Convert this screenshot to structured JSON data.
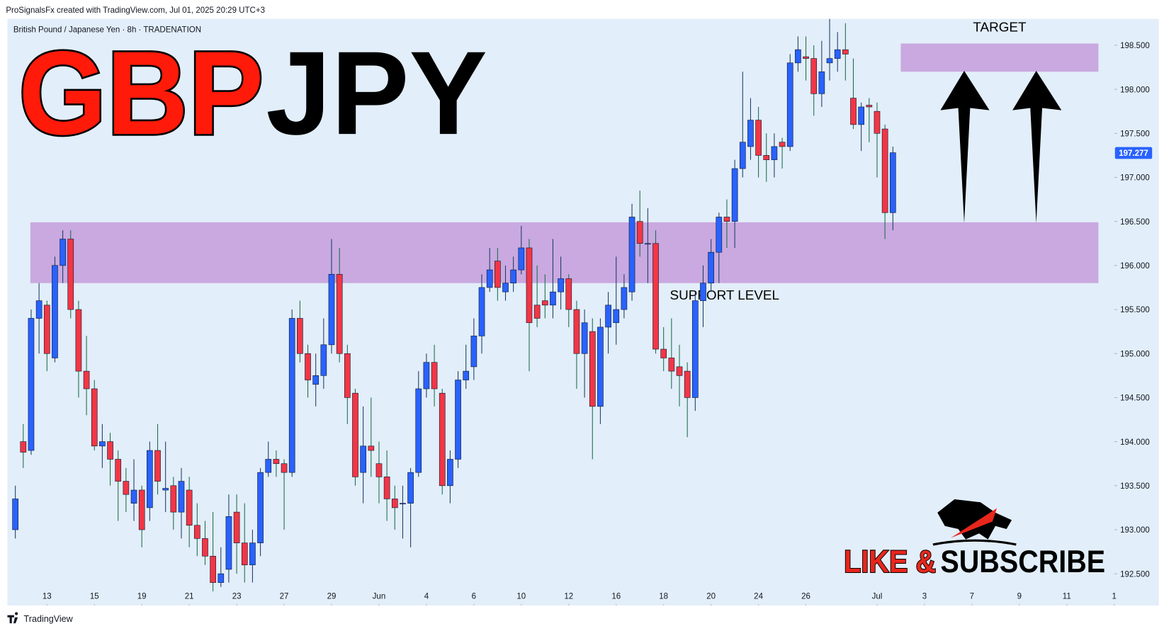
{
  "chart_data": {
    "type": "candlestick",
    "header": "ProSignalsFx created with TradingView.com, Jul 01, 2025 20:29 UTC+3",
    "subtitle": "British Pound / Japanese Yen · 8h · TRADENATION",
    "title_parts": [
      "GBP",
      "JPY"
    ],
    "cta_parts": [
      "LIKE &",
      "SUBSCRIBE"
    ],
    "footer": "TradingView",
    "up_color": "#2962ff",
    "down_color": "#f23645",
    "last_price": 197.277,
    "open": [
      193.0,
      194.0,
      193.9,
      195.4,
      195.55,
      194.95,
      196.0,
      196.3,
      195.5,
      194.8,
      194.6,
      193.95,
      194.0,
      193.8,
      193.55,
      193.3,
      193.45,
      193.25,
      193.9,
      193.45,
      193.5,
      193.2,
      193.45,
      193.05,
      192.9,
      192.7,
      192.4,
      192.55,
      193.2,
      192.85,
      192.6,
      192.85,
      193.65,
      193.8,
      193.75,
      193.65,
      195.4,
      195.0,
      194.65,
      194.75,
      195.1,
      195.9,
      195.0,
      194.55,
      193.65,
      193.95,
      193.75,
      193.6,
      193.35,
      193.3,
      193.3,
      193.65,
      194.6,
      194.9,
      194.55,
      193.5,
      193.8,
      194.7,
      194.85,
      195.2,
      195.75,
      196.05,
      195.7,
      195.8,
      195.95,
      196.2,
      195.55,
      195.6,
      195.55,
      195.7,
      195.85,
      195.5,
      195.0,
      195.25,
      194.4,
      195.3,
      195.35,
      195.5,
      195.7,
      196.5,
      196.25,
      196.25,
      195.05,
      194.95,
      194.85,
      194.8,
      194.5,
      195.6,
      195.8,
      196.15,
      196.55,
      196.5,
      197.1,
      197.35,
      197.65,
      197.25,
      197.2,
      197.4,
      197.35,
      198.3,
      198.37,
      198.35,
      197.95,
      198.3,
      198.35,
      198.45,
      197.9,
      197.6,
      197.82,
      197.75,
      197.55,
      196.6
    ],
    "high": [
      193.5,
      194.2,
      195.5,
      195.8,
      195.6,
      196.1,
      196.4,
      196.4,
      195.6,
      195.2,
      194.7,
      194.2,
      194.1,
      193.9,
      193.7,
      193.8,
      193.5,
      194.0,
      194.2,
      194.0,
      193.6,
      193.7,
      193.6,
      193.3,
      193.1,
      193.2,
      192.8,
      193.4,
      193.4,
      193.3,
      193.0,
      193.7,
      194.0,
      193.9,
      193.8,
      195.5,
      195.6,
      195.1,
      195.0,
      195.4,
      196.3,
      196.2,
      195.1,
      194.6,
      194.4,
      194.5,
      194.0,
      193.9,
      193.5,
      193.5,
      193.7,
      194.8,
      195.0,
      195.1,
      194.6,
      193.9,
      194.8,
      195.1,
      195.4,
      195.9,
      196.2,
      196.2,
      196.0,
      196.1,
      196.45,
      196.3,
      196.0,
      195.9,
      196.3,
      196.1,
      195.9,
      195.6,
      195.5,
      195.4,
      195.4,
      195.7,
      196.1,
      195.9,
      196.7,
      196.85,
      196.65,
      196.4,
      195.3,
      195.4,
      195.1,
      194.9,
      195.7,
      196.0,
      196.3,
      196.6,
      196.75,
      197.2,
      198.2,
      197.9,
      197.8,
      197.5,
      197.5,
      197.45,
      198.4,
      198.6,
      198.6,
      198.5,
      198.55,
      198.8,
      198.65,
      198.75,
      198.35,
      197.85,
      197.9,
      197.85,
      197.6,
      197.35
    ],
    "low": [
      192.9,
      193.7,
      193.85,
      195.0,
      194.8,
      194.9,
      195.8,
      195.4,
      194.5,
      194.3,
      193.9,
      193.7,
      193.5,
      193.1,
      193.2,
      193.1,
      192.8,
      193.1,
      193.4,
      193.2,
      193.0,
      192.9,
      192.8,
      192.7,
      192.6,
      192.3,
      192.35,
      192.4,
      192.5,
      192.4,
      192.4,
      192.7,
      193.6,
      193.6,
      193.0,
      193.6,
      194.9,
      194.5,
      194.4,
      194.6,
      195.0,
      194.9,
      194.2,
      193.5,
      193.3,
      193.6,
      193.3,
      193.1,
      193.0,
      192.9,
      192.8,
      193.6,
      194.5,
      194.4,
      193.4,
      193.3,
      193.7,
      194.6,
      194.7,
      195.0,
      195.7,
      195.6,
      195.6,
      195.7,
      195.9,
      194.8,
      195.3,
      195.4,
      195.4,
      195.5,
      195.3,
      194.6,
      194.5,
      193.8,
      194.2,
      195.0,
      195.1,
      195.4,
      195.6,
      196.1,
      195.8,
      195.0,
      194.8,
      194.6,
      194.4,
      194.05,
      194.35,
      195.3,
      195.7,
      195.8,
      196.2,
      196.2,
      197.0,
      197.2,
      197.0,
      196.95,
      197.0,
      197.1,
      197.3,
      198.2,
      198.1,
      197.7,
      197.8,
      198.1,
      198.2,
      198.1,
      197.55,
      197.3,
      197.4,
      197.0,
      196.3,
      196.4
    ],
    "close": [
      193.35,
      193.88,
      195.4,
      195.6,
      195.0,
      196.0,
      196.3,
      195.5,
      194.8,
      194.6,
      193.95,
      194.0,
      193.8,
      193.55,
      193.4,
      193.45,
      193.0,
      193.9,
      193.55,
      193.47,
      193.2,
      193.55,
      193.05,
      192.9,
      192.7,
      192.4,
      192.5,
      193.15,
      192.85,
      192.6,
      192.85,
      193.65,
      193.8,
      193.75,
      193.65,
      195.4,
      195.0,
      194.7,
      194.75,
      195.1,
      195.9,
      195.0,
      194.5,
      193.6,
      193.95,
      193.9,
      193.6,
      193.35,
      193.25,
      193.3,
      193.65,
      194.6,
      194.9,
      194.6,
      193.5,
      193.8,
      194.7,
      194.8,
      195.2,
      195.75,
      195.95,
      195.75,
      195.8,
      195.95,
      196.2,
      195.35,
      195.4,
      195.55,
      195.7,
      195.85,
      195.5,
      195.0,
      195.35,
      194.4,
      195.3,
      195.55,
      195.5,
      195.75,
      196.55,
      196.25,
      196.25,
      195.05,
      194.95,
      194.8,
      194.75,
      194.5,
      195.6,
      195.8,
      196.15,
      196.55,
      196.5,
      197.1,
      197.4,
      197.65,
      197.25,
      197.2,
      197.35,
      197.35,
      198.3,
      198.45,
      198.35,
      197.95,
      198.2,
      198.35,
      198.45,
      198.4,
      197.6,
      197.8,
      197.8,
      197.5,
      196.6,
      197.28
    ],
    "xlim": [
      -1,
      139
    ],
    "xticks": [
      {
        "value": 4,
        "label": "13"
      },
      {
        "value": 10,
        "label": "15"
      },
      {
        "value": 16,
        "label": "19"
      },
      {
        "value": 22,
        "label": "21"
      },
      {
        "value": 28,
        "label": "23"
      },
      {
        "value": 34,
        "label": "27"
      },
      {
        "value": 40,
        "label": "29"
      },
      {
        "value": 46,
        "label": "Jun"
      },
      {
        "value": 52,
        "label": "4"
      },
      {
        "value": 58,
        "label": "6"
      },
      {
        "value": 64,
        "label": "10"
      },
      {
        "value": 70,
        "label": "12"
      },
      {
        "value": 76,
        "label": "16"
      },
      {
        "value": 82,
        "label": "18"
      },
      {
        "value": 88,
        "label": "20"
      },
      {
        "value": 94,
        "label": "24"
      },
      {
        "value": 100,
        "label": "26"
      },
      {
        "value": 109,
        "label": "Jul"
      },
      {
        "value": 115,
        "label": "3"
      },
      {
        "value": 121,
        "label": "7"
      },
      {
        "value": 127,
        "label": "9"
      },
      {
        "value": 133,
        "label": "11"
      },
      {
        "value": 139,
        "label": "1"
      }
    ],
    "ylim": [
      192.14,
      198.8
    ],
    "yticks": [
      {
        "value": 192.5,
        "label": "192.500"
      },
      {
        "value": 193,
        "label": "193.000"
      },
      {
        "value": 193.5,
        "label": "193.500"
      },
      {
        "value": 194,
        "label": "194.000"
      },
      {
        "value": 194.5,
        "label": "194.500"
      },
      {
        "value": 195,
        "label": "195.000"
      },
      {
        "value": 195.5,
        "label": "195.500"
      },
      {
        "value": 196,
        "label": "196.000"
      },
      {
        "value": 196.5,
        "label": "196.500"
      },
      {
        "value": 197,
        "label": "197.000"
      },
      {
        "value": 197.5,
        "label": "197.500"
      },
      {
        "value": 198,
        "label": "198.000"
      },
      {
        "value": 198.5,
        "label": "198.500"
      }
    ],
    "zone_color": "#c9a9e0",
    "zones": [
      {
        "label": "TARGET",
        "range": [
          198.2,
          198.52
        ],
        "x": [
          112,
          137
        ]
      },
      {
        "label": "SUPPORT LEVEL",
        "range": [
          195.8,
          196.49
        ],
        "x": [
          1.9,
          137
        ]
      }
    ]
  }
}
